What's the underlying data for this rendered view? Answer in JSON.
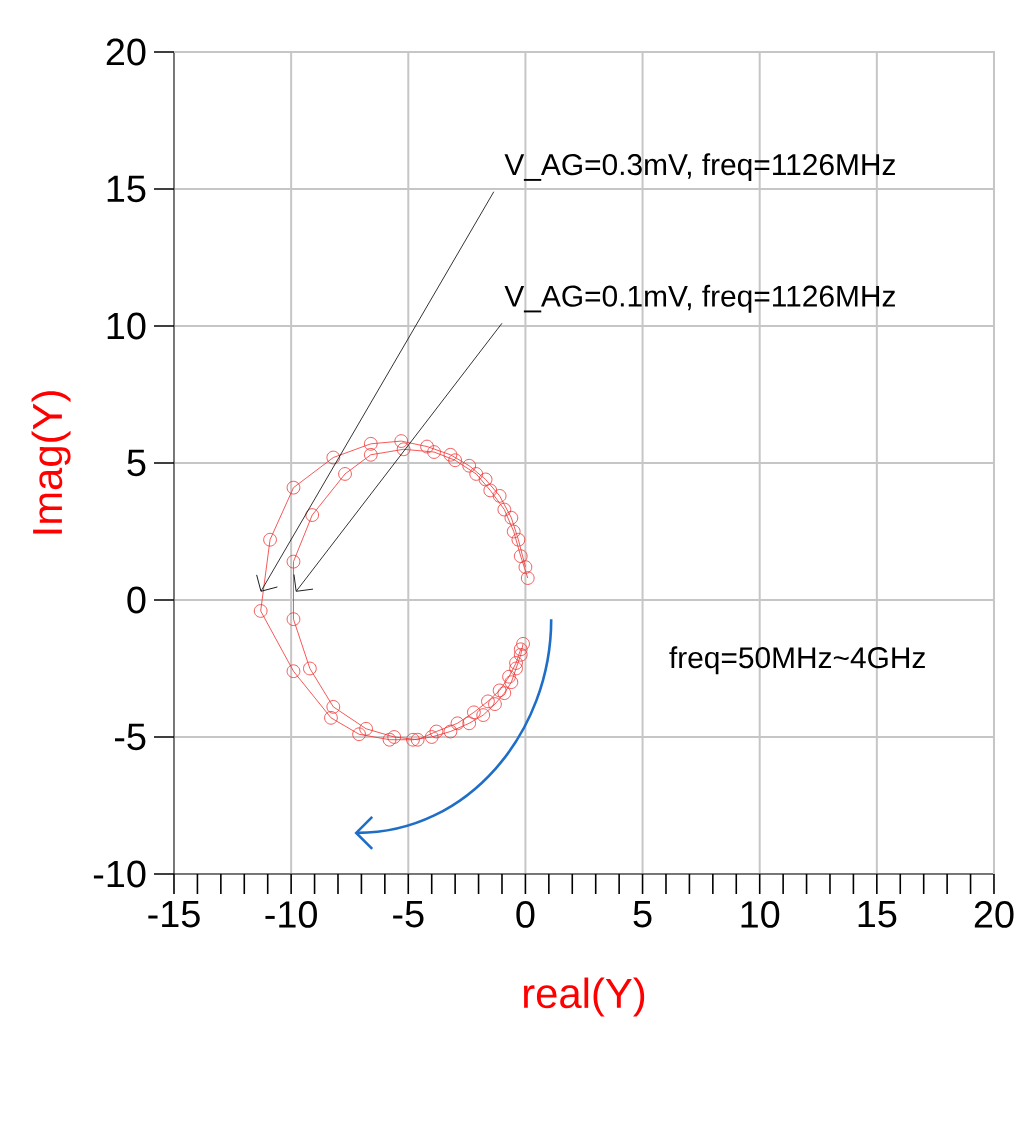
{
  "chart_data": {
    "type": "line",
    "xlabel": "real(Y)",
    "ylabel": "Imag(Y)",
    "xlim": [
      -15,
      20
    ],
    "ylim": [
      -10,
      20
    ],
    "xticks": [
      -15,
      -10,
      -5,
      0,
      5,
      10,
      15,
      20
    ],
    "yticks": [
      -10,
      -5,
      0,
      5,
      10,
      15,
      20
    ],
    "grid": true,
    "marker": "circle",
    "line_style": "solid",
    "series": [
      {
        "color": "#f03030",
        "x": [
          -0.1,
          -0.2,
          -0.4,
          -0.6,
          -0.9,
          -1.3,
          -1.8,
          -2.4,
          -3.2,
          -4.0,
          -4.8,
          -5.8,
          -7.1,
          -8.3,
          -9.9,
          -11.3,
          -10.9,
          -9.9,
          -8.2,
          -6.6,
          -5.3,
          -4.2,
          -3.2,
          -2.4,
          -1.7,
          -1.1,
          -0.6,
          -0.3,
          0.0
        ],
        "values": [
          -1.6,
          -2.0,
          -2.5,
          -3.0,
          -3.4,
          -3.8,
          -4.2,
          -4.5,
          -4.8,
          -5.0,
          -5.1,
          -5.1,
          -4.9,
          -4.3,
          -2.6,
          -0.4,
          2.2,
          4.1,
          5.2,
          5.7,
          5.8,
          5.6,
          5.3,
          4.9,
          4.4,
          3.8,
          3.0,
          2.2,
          1.2
        ]
      },
      {
        "color": "#f03030",
        "x": [
          -0.2,
          -0.4,
          -0.7,
          -1.1,
          -1.6,
          -2.2,
          -2.9,
          -3.8,
          -4.6,
          -5.6,
          -6.8,
          -8.2,
          -9.2,
          -9.9,
          -9.9,
          -9.1,
          -7.7,
          -6.6,
          -5.2,
          -3.9,
          -3.0,
          -2.1,
          -1.5,
          -0.9,
          -0.5,
          -0.2,
          0.1
        ],
        "values": [
          -1.8,
          -2.3,
          -2.8,
          -3.3,
          -3.7,
          -4.1,
          -4.5,
          -4.8,
          -5.1,
          -5.0,
          -4.7,
          -3.9,
          -2.5,
          -0.7,
          1.4,
          3.1,
          4.6,
          5.3,
          5.5,
          5.4,
          5.1,
          4.6,
          4.0,
          3.3,
          2.5,
          1.6,
          0.8
        ]
      }
    ],
    "annotations": [
      {
        "text": "V_AG=0.3mV, freq=1126MHz",
        "x": -11.3,
        "y": 0.3
      },
      {
        "text": "V_AG=0.1mV, freq=1126MHz",
        "x": -9.8,
        "y": 0.3
      },
      "freq=50MHz~4GHz"
    ]
  }
}
